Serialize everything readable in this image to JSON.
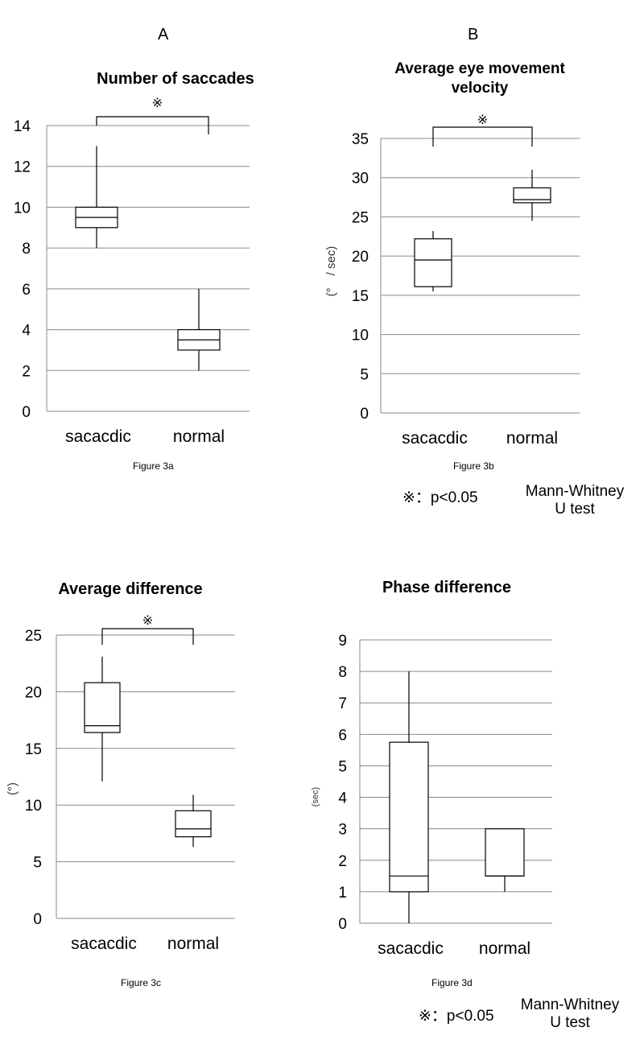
{
  "panels": {
    "a_letter": "A",
    "b_letter": "B"
  },
  "captions": {
    "a": "Figure 3a",
    "b": "Figure 3b",
    "c": "Figure 3c",
    "d": "Figure 3d"
  },
  "notes": {
    "top": {
      "significance": "※：p<0.05",
      "test_line1": "Mann-Whitney",
      "test_line2": "U test"
    },
    "bottom": {
      "significance": "※：p<0.05",
      "test_line1": "Mann-Whitney",
      "test_line2": "U test"
    }
  },
  "chart_data": [
    {
      "type": "box",
      "title": "Number of saccades",
      "ylabel": "",
      "ylim": [
        0,
        14
      ],
      "yticks": [
        0,
        2,
        4,
        6,
        8,
        10,
        12,
        14
      ],
      "grid": true,
      "significance_marker": "※",
      "categories": [
        "sacacdic",
        "normal"
      ],
      "boxes": [
        {
          "category": "sacacdic",
          "min": 8,
          "q1": 9,
          "median": 9.5,
          "q3": 10,
          "max": 13
        },
        {
          "category": "normal",
          "min": 2,
          "q1": 3,
          "median": 3.5,
          "q3": 4,
          "max": 6
        }
      ]
    },
    {
      "type": "box",
      "title_line1": "Average eye movement",
      "title_line2": "velocity",
      "ylabel": "(°　/ sec)",
      "ylim": [
        0,
        35
      ],
      "yticks": [
        0,
        5,
        10,
        15,
        20,
        25,
        30,
        35
      ],
      "grid": true,
      "significance_marker": "※",
      "categories": [
        "sacacdic",
        "normal"
      ],
      "boxes": [
        {
          "category": "sacacdic",
          "min": 15.5,
          "q1": 16.1,
          "median": 19.5,
          "q3": 22.2,
          "max": 23.2
        },
        {
          "category": "normal",
          "min": 24.5,
          "q1": 26.8,
          "median": 27.2,
          "q3": 28.7,
          "max": 31
        }
      ]
    },
    {
      "type": "box",
      "title": "Average difference",
      "ylabel": "(°)",
      "ylim": [
        0,
        25
      ],
      "yticks": [
        0,
        5,
        10,
        15,
        20,
        25
      ],
      "grid": true,
      "significance_marker": "※",
      "categories": [
        "sacacdic",
        "normal"
      ],
      "boxes": [
        {
          "category": "sacacdic",
          "min": 12.1,
          "q1": 16.4,
          "median": 17,
          "q3": 20.8,
          "max": 23.1
        },
        {
          "category": "normal",
          "min": 6.3,
          "q1": 7.2,
          "median": 7.9,
          "q3": 9.5,
          "max": 10.9
        }
      ]
    },
    {
      "type": "box",
      "title": "Phase difference",
      "ylabel": "(sec)",
      "ylim": [
        0,
        9
      ],
      "yticks": [
        0,
        1,
        2,
        3,
        4,
        5,
        6,
        7,
        8,
        9
      ],
      "grid": true,
      "significance_marker": "",
      "categories": [
        "sacacdic",
        "normal"
      ],
      "boxes": [
        {
          "category": "sacacdic",
          "min": 0,
          "q1": 1,
          "median": 1.5,
          "q3": 5.75,
          "max": 8
        },
        {
          "category": "normal",
          "min": 1,
          "q1": 1.5,
          "median": 1.5,
          "q3": 3,
          "max": 3
        }
      ]
    }
  ]
}
